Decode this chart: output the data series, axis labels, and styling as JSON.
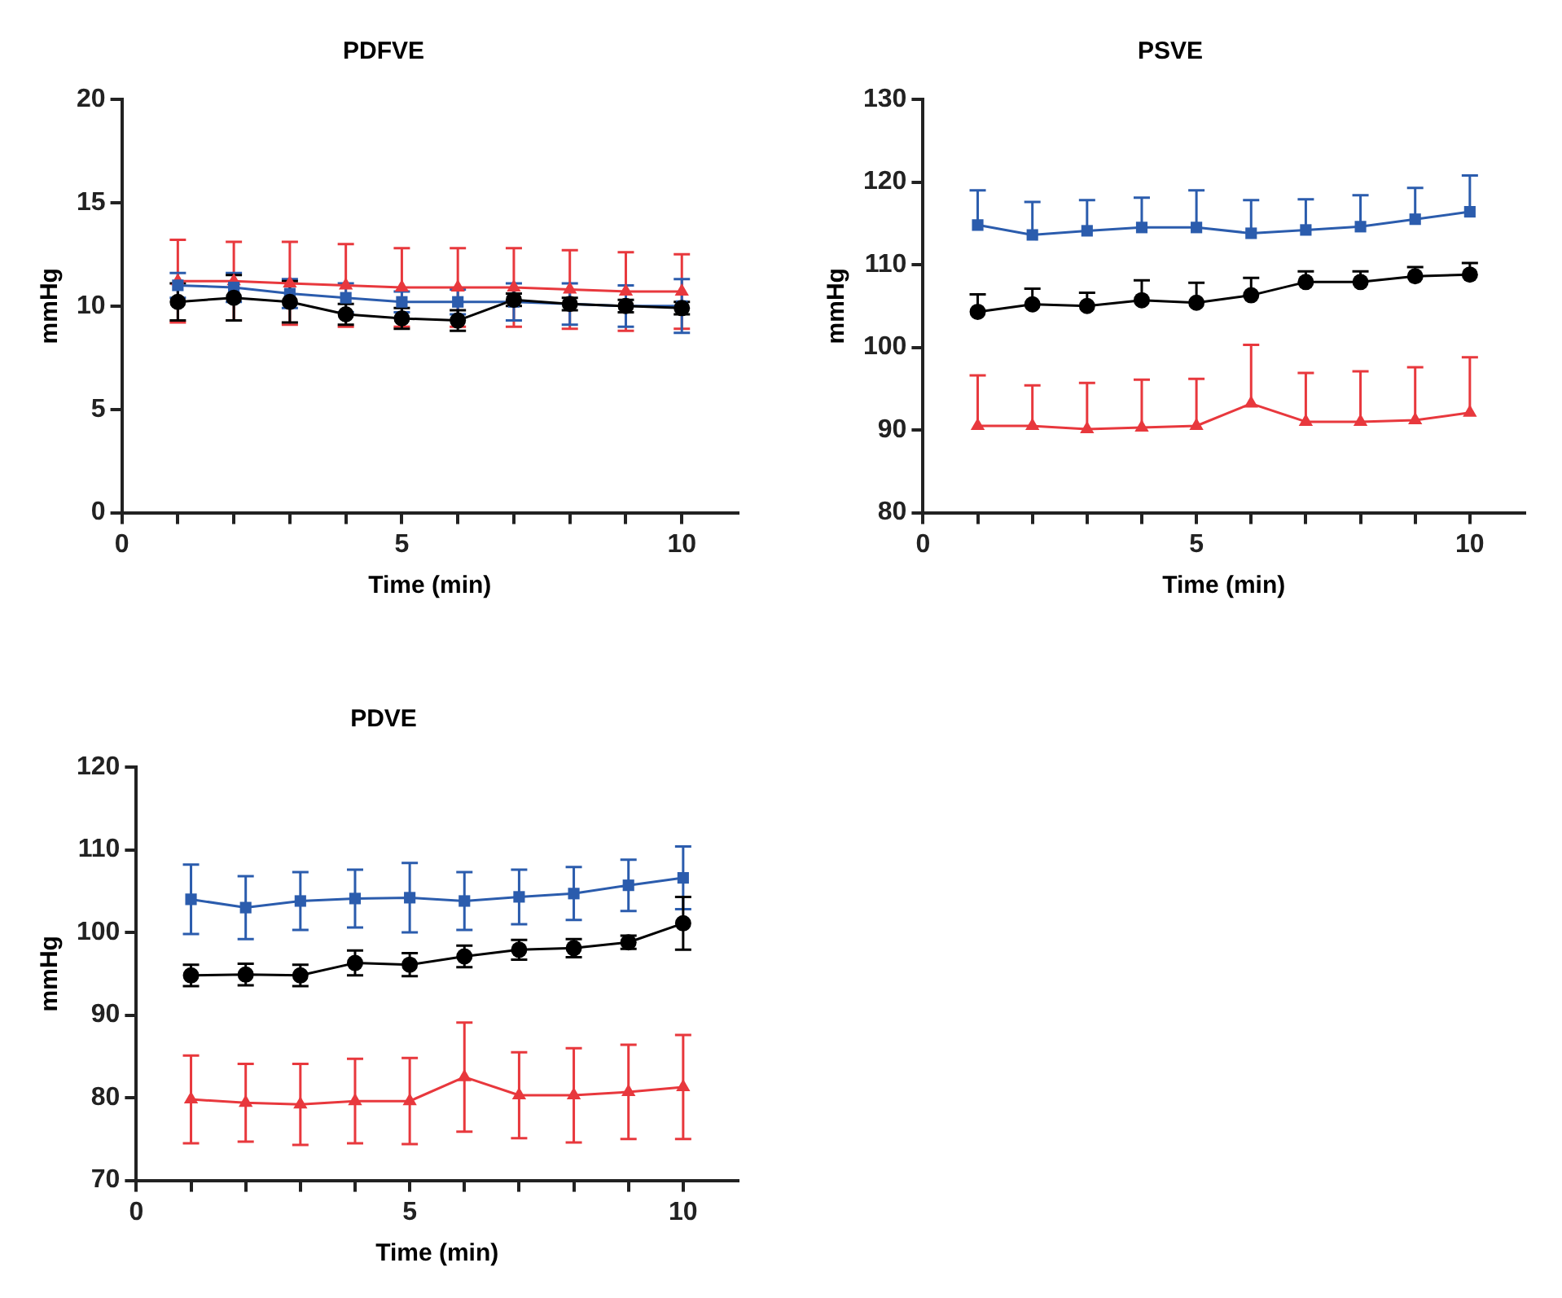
{
  "chart_data": [
    {
      "type": "line",
      "title": "PDFVE",
      "xlabel": "Time (min)",
      "ylabel": "mmHg",
      "x": [
        1,
        2,
        3,
        4,
        5,
        6,
        7,
        8,
        9,
        10
      ],
      "xlim": [
        0,
        11
      ],
      "xticks": [
        0,
        {
          "value": 1,
          "label": null
        },
        {
          "value": 2,
          "label": null
        },
        {
          "value": 3,
          "label": null
        },
        {
          "value": 4,
          "label": null
        },
        5,
        {
          "value": 6,
          "label": null
        },
        {
          "value": 7,
          "label": null
        },
        {
          "value": 8,
          "label": null
        },
        {
          "value": 9,
          "label": null
        },
        10
      ],
      "ylim": [
        0,
        20
      ],
      "yticks": [
        0,
        5,
        10,
        15,
        20
      ],
      "grid": false,
      "legend": false,
      "line_style": "solid",
      "series": [
        {
          "color": "#e8383d",
          "marker": "triangle",
          "values": [
            11.2,
            11.2,
            11.1,
            11.0,
            10.9,
            10.9,
            10.9,
            10.8,
            10.7,
            10.7
          ],
          "errors": [
            2.0,
            1.9,
            2.0,
            2.0,
            1.9,
            1.9,
            1.9,
            1.9,
            1.9,
            1.8
          ]
        },
        {
          "color": "#2b5cad",
          "marker": "square",
          "values": [
            11.0,
            10.9,
            10.6,
            10.4,
            10.2,
            10.2,
            10.2,
            10.1,
            10.0,
            10.0
          ],
          "errors": [
            0.6,
            0.7,
            0.7,
            0.7,
            0.5,
            0.6,
            0.9,
            1.0,
            1.0,
            1.3
          ]
        },
        {
          "color": "#000000",
          "marker": "circle",
          "values": [
            10.2,
            10.4,
            10.2,
            9.6,
            9.4,
            9.3,
            10.3,
            10.1,
            10.0,
            9.9
          ],
          "errors": [
            0.9,
            1.1,
            1.0,
            0.5,
            0.5,
            0.5,
            0.3,
            0.3,
            0.3,
            0.3
          ]
        }
      ]
    },
    {
      "type": "line",
      "title": "PSVE",
      "xlabel": "Time (min)",
      "ylabel": "mmHg",
      "x": [
        1,
        2,
        3,
        4,
        5,
        6,
        7,
        8,
        9,
        10
      ],
      "xlim": [
        0,
        11
      ],
      "xticks": [
        0,
        {
          "value": 1,
          "label": null
        },
        {
          "value": 2,
          "label": null
        },
        {
          "value": 3,
          "label": null
        },
        {
          "value": 4,
          "label": null
        },
        5,
        {
          "value": 6,
          "label": null
        },
        {
          "value": 7,
          "label": null
        },
        {
          "value": 8,
          "label": null
        },
        {
          "value": 9,
          "label": null
        },
        10
      ],
      "ylim": [
        80,
        130
      ],
      "yticks": [
        80,
        90,
        100,
        110,
        120,
        130
      ],
      "grid": false,
      "legend": false,
      "line_style": "solid",
      "series": [
        {
          "color": "#2b5cad",
          "marker": "square",
          "values": [
            114.8,
            113.6,
            114.1,
            114.5,
            114.5,
            113.8,
            114.2,
            114.6,
            115.5,
            116.4
          ],
          "errors": [
            [
              114.8,
              119.0
            ],
            [
              113.6,
              117.6
            ],
            [
              114.1,
              117.8
            ],
            [
              114.5,
              118.1
            ],
            [
              114.5,
              119.0
            ],
            [
              113.8,
              117.8
            ],
            [
              114.2,
              117.9
            ],
            [
              114.6,
              118.4
            ],
            [
              115.5,
              119.3
            ],
            [
              116.4,
              120.8
            ]
          ]
        },
        {
          "color": "#000000",
          "marker": "circle",
          "values": [
            104.3,
            105.2,
            105.0,
            105.7,
            105.4,
            106.3,
            107.9,
            107.9,
            108.6,
            108.8
          ],
          "errors": [
            [
              104.3,
              106.4
            ],
            [
              105.2,
              107.1
            ],
            [
              105.0,
              106.6
            ],
            [
              105.7,
              108.1
            ],
            [
              105.4,
              107.8
            ],
            [
              106.3,
              108.4
            ],
            [
              107.9,
              109.2
            ],
            [
              107.9,
              109.2
            ],
            [
              108.6,
              109.7
            ],
            [
              108.8,
              110.2
            ]
          ]
        },
        {
          "color": "#e8383d",
          "marker": "triangle",
          "values": [
            90.5,
            90.5,
            90.1,
            90.3,
            90.5,
            93.2,
            91.0,
            91.0,
            91.2,
            92.1
          ],
          "errors": [
            [
              90.5,
              96.6
            ],
            [
              90.5,
              95.4
            ],
            [
              90.1,
              95.7
            ],
            [
              90.3,
              96.1
            ],
            [
              90.5,
              96.2
            ],
            [
              93.2,
              100.3
            ],
            [
              91.0,
              96.9
            ],
            [
              91.0,
              97.1
            ],
            [
              91.2,
              97.6
            ],
            [
              92.1,
              98.8
            ]
          ]
        }
      ]
    },
    {
      "type": "line",
      "title": "PDVE",
      "xlabel": "Time (min)",
      "ylabel": "mmHg",
      "x": [
        1,
        2,
        3,
        4,
        5,
        6,
        7,
        8,
        9,
        10
      ],
      "xlim": [
        0,
        11
      ],
      "xticks": [
        0,
        {
          "value": 1,
          "label": null
        },
        {
          "value": 2,
          "label": null
        },
        {
          "value": 3,
          "label": null
        },
        {
          "value": 4,
          "label": null
        },
        5,
        {
          "value": 6,
          "label": null
        },
        {
          "value": 7,
          "label": null
        },
        {
          "value": 8,
          "label": null
        },
        {
          "value": 9,
          "label": null
        },
        10
      ],
      "ylim": [
        70,
        120
      ],
      "yticks": [
        70,
        80,
        90,
        100,
        110,
        120
      ],
      "grid": false,
      "legend": false,
      "line_style": "solid",
      "series": [
        {
          "color": "#2b5cad",
          "marker": "square",
          "values": [
            104.0,
            103.0,
            103.8,
            104.1,
            104.2,
            103.8,
            104.3,
            104.7,
            105.7,
            106.6
          ],
          "errors": [
            4.2,
            3.8,
            3.5,
            3.5,
            4.2,
            3.5,
            3.3,
            3.2,
            3.1,
            3.8
          ]
        },
        {
          "color": "#000000",
          "marker": "circle",
          "values": [
            94.8,
            94.9,
            94.8,
            96.3,
            96.1,
            97.1,
            97.9,
            98.1,
            98.8,
            101.1
          ],
          "errors": [
            1.3,
            1.3,
            1.3,
            1.5,
            1.4,
            1.3,
            1.2,
            1.1,
            0.8,
            3.2
          ]
        },
        {
          "color": "#e8383d",
          "marker": "triangle",
          "values": [
            79.8,
            79.4,
            79.2,
            79.6,
            79.6,
            82.5,
            80.3,
            80.3,
            80.7,
            81.3
          ],
          "errors": [
            5.3,
            4.7,
            4.9,
            5.1,
            5.2,
            6.6,
            5.2,
            5.7,
            5.7,
            6.3
          ]
        }
      ]
    }
  ]
}
